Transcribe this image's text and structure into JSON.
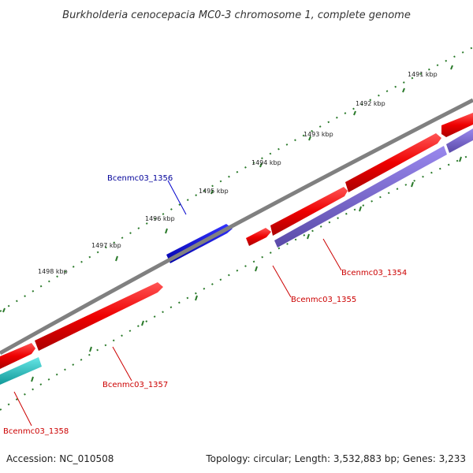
{
  "title": "Burkholderia cenocepacia MC0-3 chromosome 1, complete genome",
  "footer": {
    "accession": "Accession: NC_010508",
    "summary": "Topology: circular; Length: 3,532,883 bp; Genes: 3,233"
  },
  "ticks": [
    {
      "label": "1491 kbp"
    },
    {
      "label": "1492 kbp"
    },
    {
      "label": "1493 kbp"
    },
    {
      "label": "1494 kbp"
    },
    {
      "label": "1495 kbp"
    },
    {
      "label": "1496 kbp"
    },
    {
      "label": "1497 kbp"
    },
    {
      "label": "1498 kbp"
    }
  ],
  "genes": [
    {
      "name": "Bcenmc03_1354",
      "color": "#cc0000"
    },
    {
      "name": "Bcenmc03_1355",
      "color": "#cc0000"
    },
    {
      "name": "Bcenmc03_1356",
      "color": "#000099"
    },
    {
      "name": "Bcenmc03_1357",
      "color": "#cc0000"
    },
    {
      "name": "Bcenmc03_1358",
      "color": "#cc0000"
    }
  ],
  "colors": {
    "backbone": "#808080",
    "forward_gene": "#ee0000",
    "reverse_gene": "#7766cc",
    "cyan_gene": "#22bbbb",
    "blue_gene": "#0000dd",
    "tick": "#2a7a2a"
  }
}
